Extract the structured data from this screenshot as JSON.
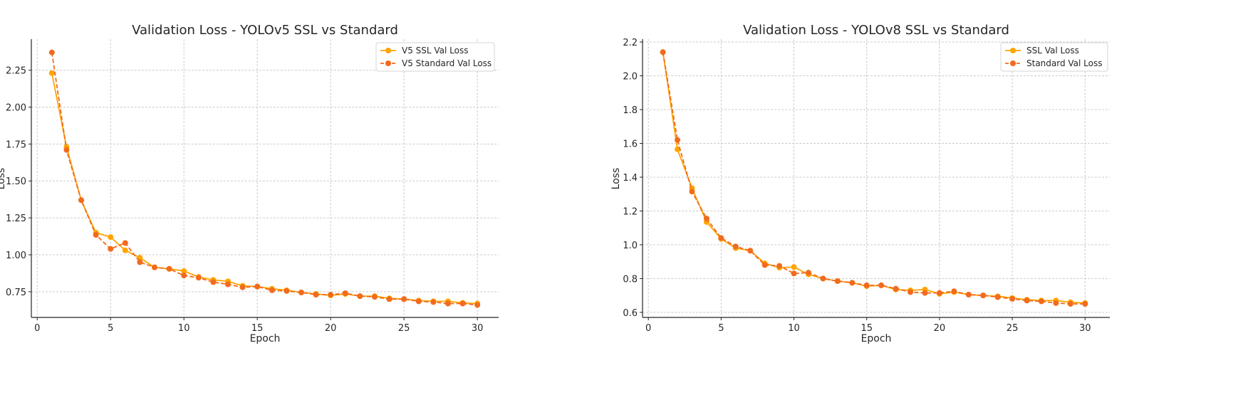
{
  "chart_data": [
    {
      "type": "line",
      "title": "Validation Loss - YOLOv5 SSL vs Standard",
      "xlabel": "Epoch",
      "ylabel": "Loss",
      "xlim": [
        -0.4,
        31.45
      ],
      "ylim": [
        0.576,
        2.46
      ],
      "xticks": [
        0,
        5,
        10,
        15,
        20,
        25,
        30
      ],
      "yticks": [
        0.75,
        1.0,
        1.25,
        1.5,
        1.75,
        2.0,
        2.25
      ],
      "ytick_labels": [
        "0.75",
        "1.00",
        "1.25",
        "1.50",
        "1.75",
        "2.00",
        "2.25"
      ],
      "grid": true,
      "legend_position": "top-right",
      "x": [
        1,
        2,
        3,
        4,
        5,
        6,
        7,
        8,
        9,
        10,
        11,
        12,
        13,
        14,
        15,
        16,
        17,
        18,
        19,
        20,
        21,
        22,
        23,
        24,
        25,
        26,
        27,
        28,
        29,
        30
      ],
      "series": [
        {
          "name": "V5 SSL Val Loss",
          "color": "#FFA500",
          "style": "solid",
          "values": [
            2.23,
            1.73,
            1.37,
            1.15,
            1.12,
            1.03,
            0.98,
            0.915,
            0.905,
            0.89,
            0.85,
            0.83,
            0.82,
            0.79,
            0.785,
            0.77,
            0.76,
            0.745,
            0.735,
            0.725,
            0.735,
            0.72,
            0.72,
            0.705,
            0.7,
            0.69,
            0.685,
            0.685,
            0.675,
            0.67
          ]
        },
        {
          "name": "V5 Standard Val Loss",
          "color": "#F26B1D",
          "style": "dashed",
          "values": [
            2.37,
            1.71,
            1.37,
            1.135,
            1.04,
            1.08,
            0.95,
            0.915,
            0.905,
            0.86,
            0.845,
            0.815,
            0.8,
            0.78,
            0.785,
            0.76,
            0.755,
            0.745,
            0.73,
            0.73,
            0.74,
            0.72,
            0.715,
            0.7,
            0.7,
            0.685,
            0.68,
            0.67,
            0.67,
            0.66
          ]
        }
      ]
    },
    {
      "type": "line",
      "title": "Validation Loss - YOLOv8 SSL vs Standard",
      "xlabel": "Epoch",
      "ylabel": "Loss",
      "xlim": [
        -0.4,
        31.7
      ],
      "ylim": [
        0.57,
        2.217
      ],
      "xticks": [
        0,
        5,
        10,
        15,
        20,
        25,
        30
      ],
      "yticks": [
        0.6,
        0.8,
        1.0,
        1.2,
        1.4,
        1.6,
        1.8,
        2.0,
        2.2
      ],
      "ytick_labels": [
        "0.6",
        "0.8",
        "1.0",
        "1.2",
        "1.4",
        "1.6",
        "1.8",
        "2.0",
        "2.2"
      ],
      "grid": true,
      "legend_position": "top-right",
      "x": [
        1,
        2,
        3,
        4,
        5,
        6,
        7,
        8,
        9,
        10,
        11,
        12,
        13,
        14,
        15,
        16,
        17,
        18,
        19,
        20,
        21,
        22,
        23,
        24,
        25,
        26,
        27,
        28,
        29,
        30
      ],
      "series": [
        {
          "name": "SSL Val Loss",
          "color": "#FFA500",
          "style": "solid",
          "values": [
            2.14,
            1.565,
            1.335,
            1.135,
            1.035,
            0.98,
            0.965,
            0.89,
            0.865,
            0.868,
            0.825,
            0.8,
            0.785,
            0.775,
            0.755,
            0.76,
            0.735,
            0.73,
            0.735,
            0.71,
            0.72,
            0.705,
            0.7,
            0.695,
            0.685,
            0.675,
            0.67,
            0.67,
            0.66,
            0.655
          ]
        },
        {
          "name": "Standard Val Loss",
          "color": "#F26B1D",
          "style": "dashed",
          "values": [
            2.14,
            1.62,
            1.315,
            1.155,
            1.04,
            0.99,
            0.965,
            0.88,
            0.875,
            0.83,
            0.835,
            0.8,
            0.785,
            0.775,
            0.76,
            0.76,
            0.74,
            0.72,
            0.715,
            0.715,
            0.725,
            0.705,
            0.7,
            0.69,
            0.68,
            0.67,
            0.665,
            0.655,
            0.65,
            0.65
          ]
        }
      ]
    }
  ]
}
